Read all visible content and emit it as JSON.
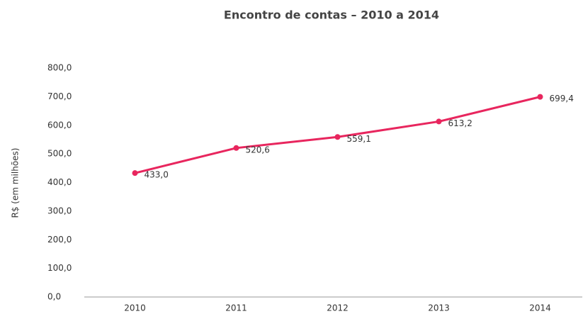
{
  "chart_data": {
    "type": "line",
    "title": "Encontro de contas – 2010 a 2014",
    "y_label": "R$ (em milhões)",
    "categories": [
      "2010",
      "2011",
      "2012",
      "2013",
      "2014"
    ],
    "series": [
      {
        "name": "Encontro de contas",
        "color": "#e8265e",
        "values": [
          433.0,
          520.6,
          559.1,
          613.2,
          699.4
        ],
        "value_labels": [
          "433,0",
          "520,6",
          "559,1",
          "613,2",
          "699,4"
        ]
      }
    ],
    "ylim": [
      0,
      800
    ],
    "yticks": [
      {
        "value": 0,
        "label": "0,0"
      },
      {
        "value": 100,
        "label": "100,0"
      },
      {
        "value": 200,
        "label": "200,0"
      },
      {
        "value": 300,
        "label": "300,0"
      },
      {
        "value": 400,
        "label": "400,0"
      },
      {
        "value": 500,
        "label": "500,0"
      },
      {
        "value": 600,
        "label": "600,0"
      },
      {
        "value": 700,
        "label": "700,0"
      },
      {
        "value": 800,
        "label": "800,0"
      }
    ],
    "grid": false
  }
}
